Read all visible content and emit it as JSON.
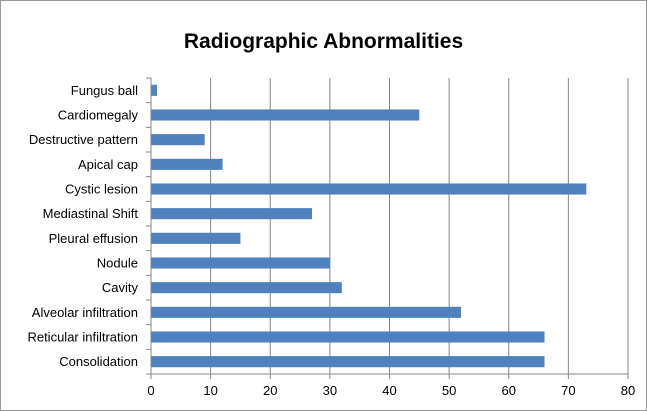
{
  "chart_data": {
    "type": "bar",
    "orientation": "horizontal",
    "title": "Radiographic Abnormalities",
    "xlabel": "",
    "ylabel": "",
    "categories": [
      "Fungus ball",
      "Cardiomegaly",
      "Destructive pattern",
      "Apical cap",
      "Cystic lesion",
      "Mediastinal Shift",
      "Pleural effusion",
      "Nodule",
      "Cavity",
      "Alveolar infiltration",
      "Reticular infiltration",
      "Consolidation"
    ],
    "values": [
      1,
      45,
      9,
      12,
      73,
      27,
      15,
      30,
      32,
      52,
      66,
      66
    ],
    "xlim": [
      0,
      80
    ],
    "xticks": [
      "0",
      "10",
      "20",
      "30",
      "40",
      "50",
      "60",
      "70",
      "80"
    ],
    "grid": "vertical",
    "legend": "none",
    "bar_color": "#4f81bd",
    "grid_color": "#868686"
  }
}
